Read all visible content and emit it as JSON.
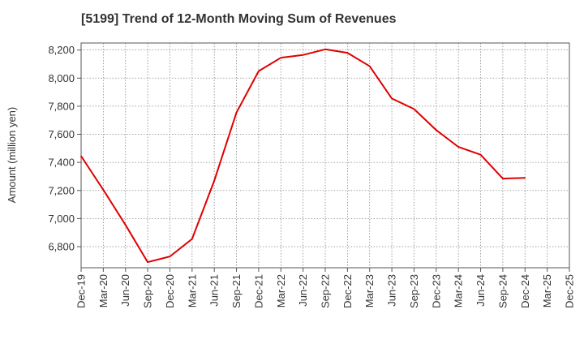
{
  "chart_data": {
    "type": "line",
    "title": "[5199]  Trend of 12-Month Moving Sum of Revenues",
    "xlabel": "",
    "ylabel": "Amount (million yen)",
    "ylim": [
      6650,
      8250
    ],
    "yticks": [
      6800,
      7000,
      7200,
      7400,
      7600,
      7800,
      8000,
      8200
    ],
    "ytick_labels": [
      "6,800",
      "7,000",
      "7,200",
      "7,400",
      "7,600",
      "7,800",
      "8,000",
      "8,200"
    ],
    "x_tick_labels": [
      "Dec-19",
      "Mar-20",
      "Jun-20",
      "Sep-20",
      "Dec-20",
      "Mar-21",
      "Jun-21",
      "Sep-21",
      "Dec-21",
      "Mar-22",
      "Jun-22",
      "Sep-22",
      "Dec-22",
      "Mar-23",
      "Jun-23",
      "Sep-23",
      "Dec-23",
      "Mar-24",
      "Jun-24",
      "Sep-24",
      "Dec-24",
      "Mar-25",
      "Dec-25"
    ],
    "grid": true,
    "series": [
      {
        "color": "#e00000",
        "x": [
          "Dec-19",
          "Mar-20",
          "Jun-20",
          "Sep-20",
          "Dec-20",
          "Mar-21",
          "Jun-21",
          "Sep-21",
          "Dec-21",
          "Mar-22",
          "Jun-22",
          "Sep-22",
          "Dec-22",
          "Mar-23",
          "Jun-23",
          "Sep-23",
          "Dec-23",
          "Mar-24",
          "Jun-24",
          "Sep-24",
          "Dec-24"
        ],
        "values": [
          7445,
          7205,
          6955,
          6690,
          6730,
          6855,
          7270,
          7755,
          8050,
          8145,
          8165,
          8205,
          8180,
          8085,
          7855,
          7780,
          7630,
          7510,
          7455,
          7285,
          7290
        ]
      }
    ]
  }
}
